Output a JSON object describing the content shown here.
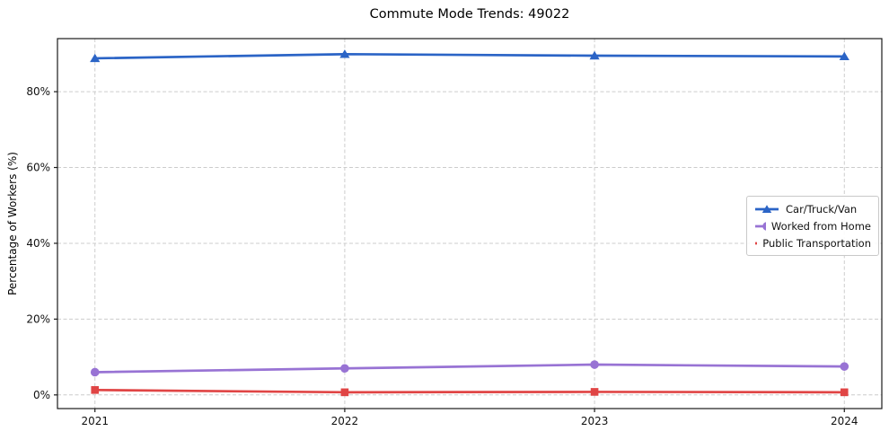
{
  "figure": {
    "title": "Commute Mode Trends: 49022"
  },
  "chart_data": {
    "type": "line",
    "title": "Commute Mode Trends: 49022",
    "xlabel": "",
    "ylabel": "Percentage of Workers (%)",
    "x": [
      2021,
      2022,
      2023,
      2024
    ],
    "x_tick_labels": [
      "2021",
      "2022",
      "2023",
      "2024"
    ],
    "y_ticks": [
      0,
      20,
      40,
      60,
      80
    ],
    "y_tick_labels": [
      "0%",
      "20%",
      "40%",
      "60%",
      "80%"
    ],
    "xlim": [
      2020.85,
      2024.15
    ],
    "ylim": [
      -3.6,
      94
    ],
    "grid": true,
    "grid_style": "dashed",
    "legend_position": "center-right",
    "series": [
      {
        "name": "Car/Truck/Van",
        "marker": "triangle",
        "color": "#2b64c6",
        "values": [
          88.8,
          89.9,
          89.5,
          89.3
        ]
      },
      {
        "name": "Worked from Home",
        "marker": "circle",
        "color": "#9873d4",
        "values": [
          6.0,
          7.0,
          8.0,
          7.5
        ]
      },
      {
        "name": "Public Transportation",
        "marker": "square",
        "color": "#e04545",
        "values": [
          1.3,
          0.7,
          0.8,
          0.7
        ]
      }
    ],
    "colors": {
      "grid": "#cccccc",
      "spine": "#1a1a1a",
      "background": "#ffffff"
    }
  }
}
